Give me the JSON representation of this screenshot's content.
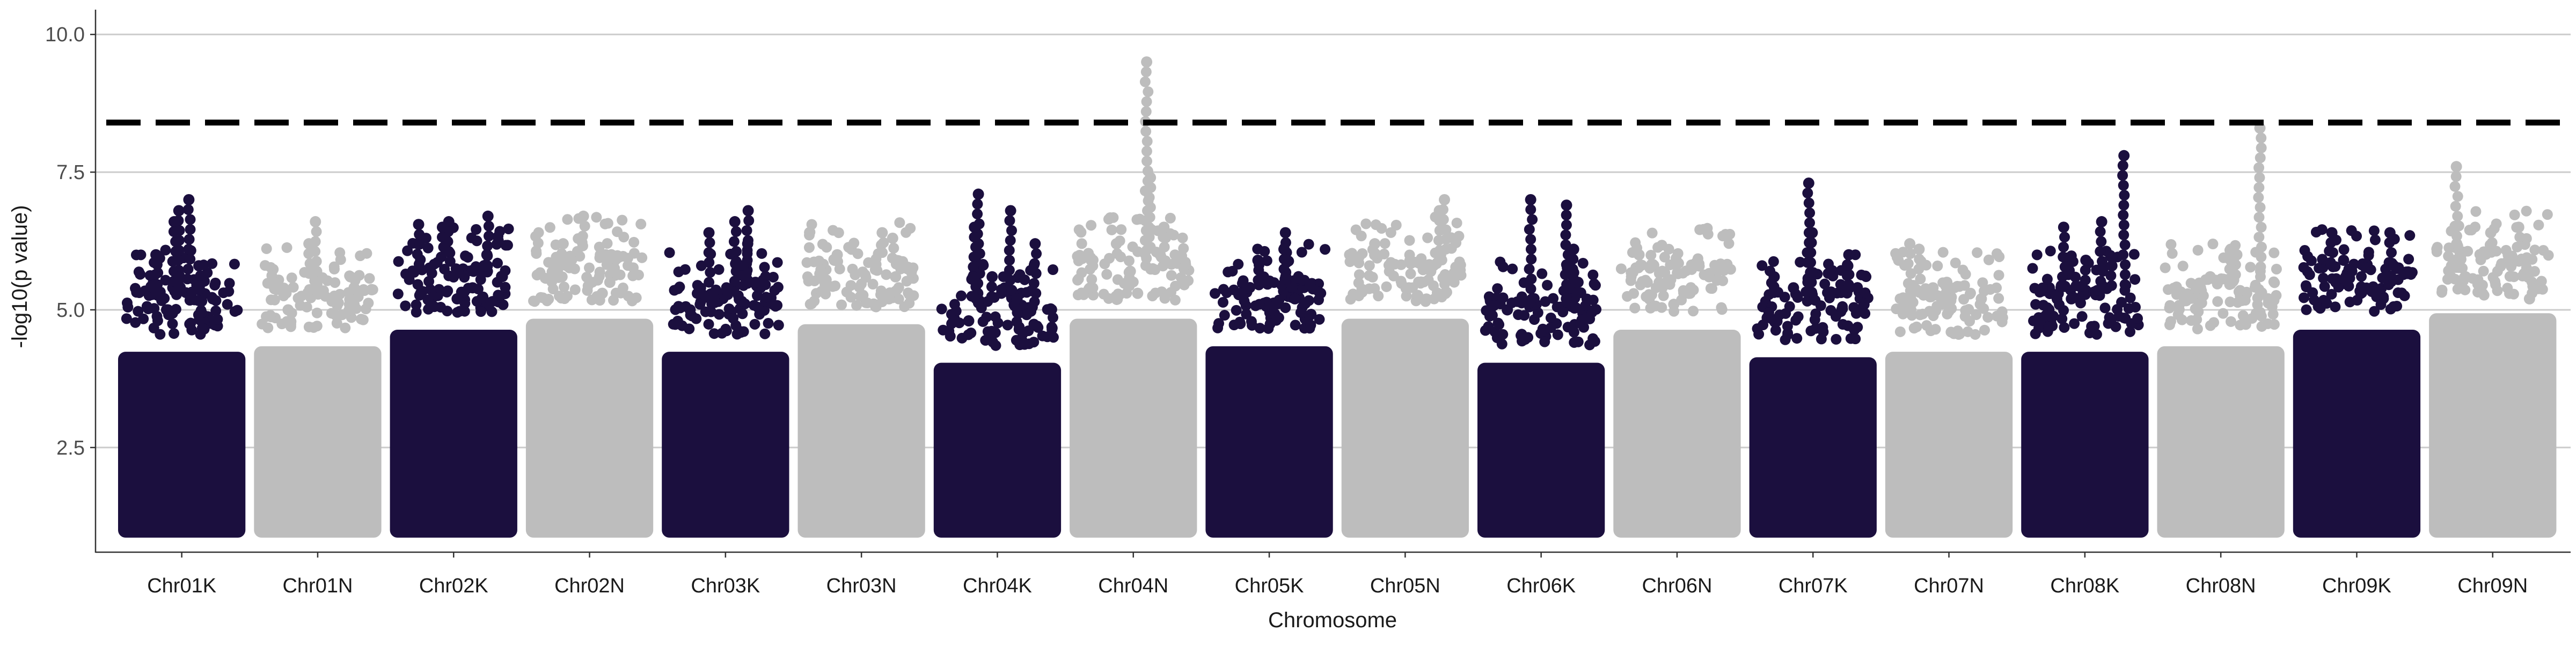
{
  "chart_data": {
    "type": "scatter",
    "subtype": "manhattan",
    "title": "",
    "xlabel": "Chromosome",
    "ylabel": "-log10(p value)",
    "ylim": [
      0.6,
      10.45
    ],
    "y_ticks": [
      2.5,
      5.0,
      7.5,
      10.0
    ],
    "y_tick_labels": [
      "2.5",
      "5.0",
      "7.5",
      "10.0"
    ],
    "grid": {
      "horizontal_major": true,
      "vertical": false
    },
    "legend": "none",
    "threshold": {
      "value": 8.4,
      "style": "dashed",
      "color": "#000000"
    },
    "colors": {
      "odd_chromosome": "#1b0f3e",
      "even_chromosome": "#bdbdbd"
    },
    "categories": [
      "Chr01K",
      "Chr01N",
      "Chr02K",
      "Chr02N",
      "Chr03K",
      "Chr03N",
      "Chr04K",
      "Chr04N",
      "Chr05K",
      "Chr05N",
      "Chr06K",
      "Chr06N",
      "Chr07K",
      "Chr07N",
      "Chr08K",
      "Chr08N",
      "Chr09K",
      "Chr09N"
    ],
    "series": [
      {
        "chromosome": "Chr01K",
        "bulk_max": 4.2,
        "peaks": [
          6.8,
          7.0,
          6.6,
          6.0,
          5.8,
          5.6,
          5.2,
          5.0
        ]
      },
      {
        "chromosome": "Chr01N",
        "bulk_max": 4.3,
        "peaks": [
          6.6,
          6.2,
          5.6,
          5.4,
          5.1,
          5.0
        ]
      },
      {
        "chromosome": "Chr02K",
        "bulk_max": 4.6,
        "peaks": [
          6.6,
          6.55,
          6.7,
          6.5,
          6.0,
          5.8,
          5.4,
          5.2
        ]
      },
      {
        "chromosome": "Chr02N",
        "bulk_max": 4.8,
        "peaks": [
          6.7,
          6.2,
          6.0,
          5.6,
          5.5,
          5.3
        ]
      },
      {
        "chromosome": "Chr03K",
        "bulk_max": 4.2,
        "peaks": [
          6.8,
          6.6,
          6.4,
          6.2,
          5.8,
          5.5,
          5.0
        ]
      },
      {
        "chromosome": "Chr03N",
        "bulk_max": 4.7,
        "peaks": [
          6.4,
          6.3,
          6.0,
          5.9,
          5.6,
          5.2
        ]
      },
      {
        "chromosome": "Chr04K",
        "bulk_max": 4.0,
        "peaks": [
          7.1,
          6.8,
          6.5,
          6.2,
          5.6,
          5.2,
          4.8
        ]
      },
      {
        "chromosome": "Chr04N",
        "bulk_max": 4.8,
        "peaks": [
          9.5,
          7.4,
          6.5,
          6.2,
          6.0,
          5.7,
          5.3
        ]
      },
      {
        "chromosome": "Chr05K",
        "bulk_max": 4.3,
        "peaks": [
          6.4,
          6.1,
          5.9,
          5.6,
          5.4,
          5.2
        ]
      },
      {
        "chromosome": "Chr05N",
        "bulk_max": 4.8,
        "peaks": [
          7.0,
          6.8,
          6.2,
          6.0,
          5.7,
          5.4
        ]
      },
      {
        "chromosome": "Chr06K",
        "bulk_max": 4.0,
        "peaks": [
          7.0,
          6.9,
          6.1,
          5.5,
          5.2,
          5.0
        ]
      },
      {
        "chromosome": "Chr06N",
        "bulk_max": 4.6,
        "peaks": [
          6.0,
          5.6,
          5.5,
          5.3,
          5.1
        ]
      },
      {
        "chromosome": "Chr07K",
        "bulk_max": 4.1,
        "peaks": [
          7.3,
          6.4,
          6.0,
          5.8,
          5.6,
          5.4
        ]
      },
      {
        "chromosome": "Chr07N",
        "bulk_max": 4.2,
        "peaks": [
          6.2,
          6.1,
          5.5,
          5.4,
          5.2
        ]
      },
      {
        "chromosome": "Chr08K",
        "bulk_max": 4.2,
        "peaks": [
          7.8,
          6.6,
          6.5,
          5.9,
          5.8,
          5.2
        ]
      },
      {
        "chromosome": "Chr08N",
        "bulk_max": 4.3,
        "peaks": [
          8.3,
          6.1,
          6.0,
          5.9,
          5.6,
          5.4
        ]
      },
      {
        "chromosome": "Chr09K",
        "bulk_max": 4.6,
        "peaks": [
          6.4,
          6.4,
          5.8,
          5.9,
          5.6,
          5.3
        ]
      },
      {
        "chromosome": "Chr09N",
        "bulk_max": 4.9,
        "peaks": [
          7.6,
          6.5,
          6.4,
          6.2,
          5.9,
          5.6,
          5.2
        ]
      }
    ]
  }
}
